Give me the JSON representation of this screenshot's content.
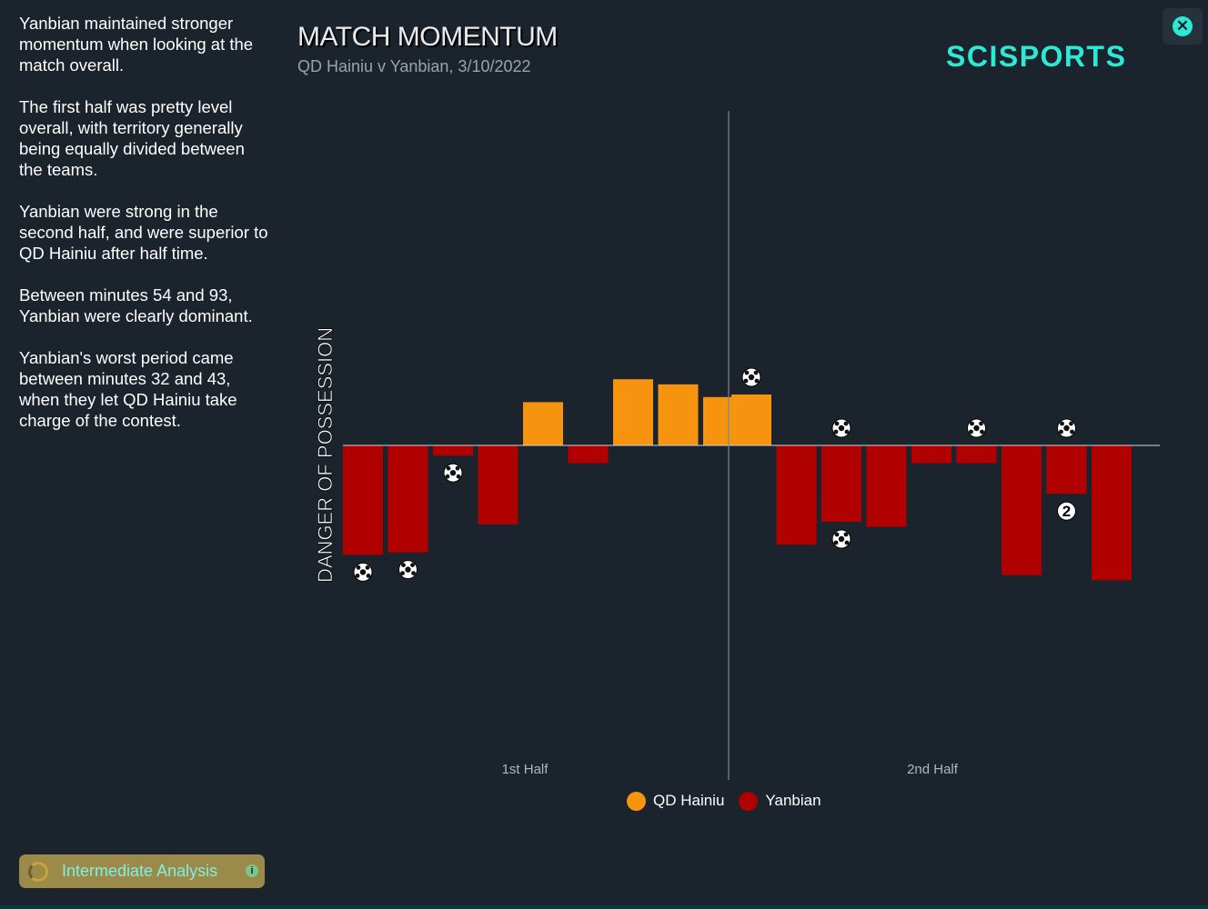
{
  "summary": {
    "paragraphs": [
      "Yanbian maintained stronger momentum when looking at the match overall.",
      "The first half was pretty level overall, with territory generally being equally divided between the teams.",
      "Yanbian were strong in the second half, and were superior to QD Hainiu after half time.",
      "Between minutes 54 and 93, Yanbian were clearly dominant.",
      "Yanbian's worst period came between minutes 32 and 43, when they let QD Hainiu take charge of the contest."
    ]
  },
  "header": {
    "title": "MATCH MOMENTUM",
    "subtitle": "QD Hainiu v Yanbian, 3/10/2022"
  },
  "logo": {
    "text": "SCISPORTS",
    "color": "#2ee8d6"
  },
  "close_button": {
    "icon": "close-icon"
  },
  "analysis_button": {
    "label": "Intermediate Analysis",
    "icon": "info-icon"
  },
  "chart_data": {
    "type": "bar",
    "ylabel": "DANGER OF POSSESSION",
    "half_labels": [
      "1st Half",
      "2nd Half"
    ],
    "ylim": [
      -1,
      1
    ],
    "series": [
      {
        "name": "QD Hainiu",
        "color": "#f7940f"
      },
      {
        "name": "Yanbian",
        "color": "#b00000"
      }
    ],
    "halves": [
      {
        "label": "1st Half",
        "bars": [
          {
            "team": "Yanbian",
            "value": -0.43,
            "goals": 1
          },
          {
            "team": "Yanbian",
            "value": -0.42,
            "goals": 1
          },
          {
            "team": "Yanbian",
            "value": -0.04,
            "goals": 1
          },
          {
            "team": "Yanbian",
            "value": -0.31,
            "goals": 0
          },
          {
            "team": "QD Hainiu",
            "value": 0.17,
            "goals": 0
          },
          {
            "team": "Yanbian",
            "value": -0.07,
            "goals": 0
          },
          {
            "team": "QD Hainiu",
            "value": 0.26,
            "goals": 0
          },
          {
            "team": "QD Hainiu",
            "value": 0.24,
            "goals": 0
          },
          {
            "team": "QD Hainiu",
            "value": 0.19,
            "goals": 0
          }
        ]
      },
      {
        "label": "2nd Half",
        "bars": [
          {
            "team": "QD Hainiu",
            "value": 0.2,
            "goals": 1
          },
          {
            "team": "Yanbian",
            "value": -0.39,
            "goals": 0
          },
          {
            "team": "Yanbian",
            "value": -0.3,
            "goals": 1,
            "opp_goals": 1
          },
          {
            "team": "Yanbian",
            "value": -0.32,
            "goals": 0
          },
          {
            "team": "Yanbian",
            "value": -0.07,
            "goals": 0
          },
          {
            "team": "Yanbian",
            "value": -0.07,
            "goals": 0,
            "opp_goals": 1
          },
          {
            "team": "Yanbian",
            "value": -0.51,
            "goals": 0
          },
          {
            "team": "Yanbian",
            "value": -0.19,
            "goals": 2,
            "opp_goals": 1
          },
          {
            "team": "Yanbian",
            "value": -0.53,
            "goals": 0
          }
        ]
      }
    ]
  }
}
